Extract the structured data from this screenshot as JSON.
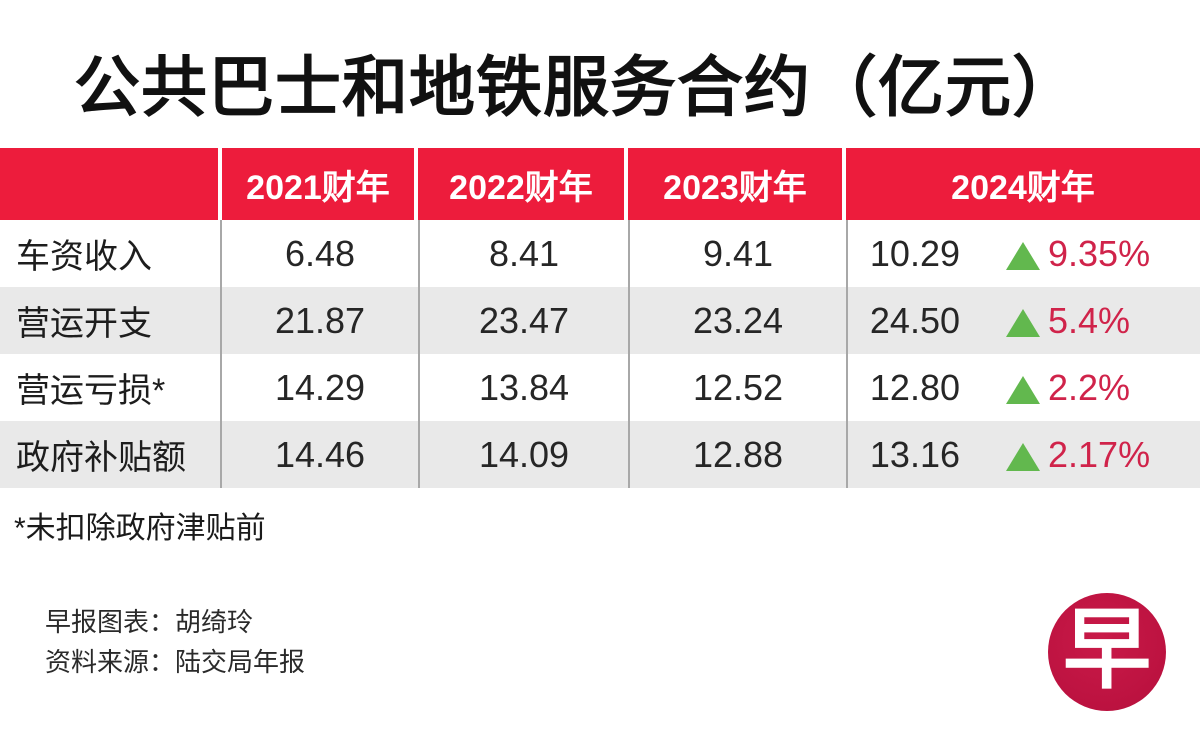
{
  "title": "公共巴士和地铁服务合约（亿元）",
  "colors": {
    "header_red": "#ED1C3C",
    "percent_red": "#D0234A",
    "triangle_green": "#62B84E",
    "row_alt_gray": "#E9E9E9",
    "logo_crimson": "#BC1240"
  },
  "table": {
    "columns": [
      "",
      "2021财年",
      "2022财年",
      "2023财年",
      "2024财年"
    ],
    "rows": [
      {
        "label": "车资收入",
        "values": [
          "6.48",
          "8.41",
          "9.41",
          "10.29"
        ],
        "change": "9.35%"
      },
      {
        "label": "营运开支",
        "values": [
          "21.87",
          "23.47",
          "23.24",
          "24.50"
        ],
        "change": "5.4%"
      },
      {
        "label": "营运亏损*",
        "values": [
          "14.29",
          "13.84",
          "12.52",
          "12.80"
        ],
        "change": "2.2%"
      },
      {
        "label": "政府补贴额",
        "values": [
          "14.46",
          "14.09",
          "12.88",
          "13.16"
        ],
        "change": "2.17%"
      }
    ]
  },
  "footnote": "*未扣除政府津贴前",
  "credits": {
    "chart_credit": "早报图表：胡绮玲",
    "source_credit": "资料来源：陆交局年报"
  },
  "logo": {
    "glyph": "早"
  },
  "chart_data": {
    "type": "table",
    "title": "公共巴士和地铁服务合约（亿元）",
    "categories": [
      "2021财年",
      "2022财年",
      "2023财年",
      "2024财年"
    ],
    "series": [
      {
        "name": "车资收入",
        "values": [
          6.48,
          8.41,
          9.41,
          10.29
        ],
        "change_2024": "▲9.35%"
      },
      {
        "name": "营运开支",
        "values": [
          21.87,
          23.47,
          23.24,
          24.5
        ],
        "change_2024": "▲5.4%"
      },
      {
        "name": "营运亏损*",
        "values": [
          14.29,
          13.84,
          12.52,
          12.8
        ],
        "change_2024": "▲2.2%"
      },
      {
        "name": "政府补贴额",
        "values": [
          14.46,
          14.09,
          12.88,
          13.16
        ],
        "change_2024": "▲2.17%"
      }
    ],
    "footnote": "*未扣除政府津贴前",
    "credit": "早报图表：胡绮玲",
    "source": "资料来源：陆交局年报"
  }
}
